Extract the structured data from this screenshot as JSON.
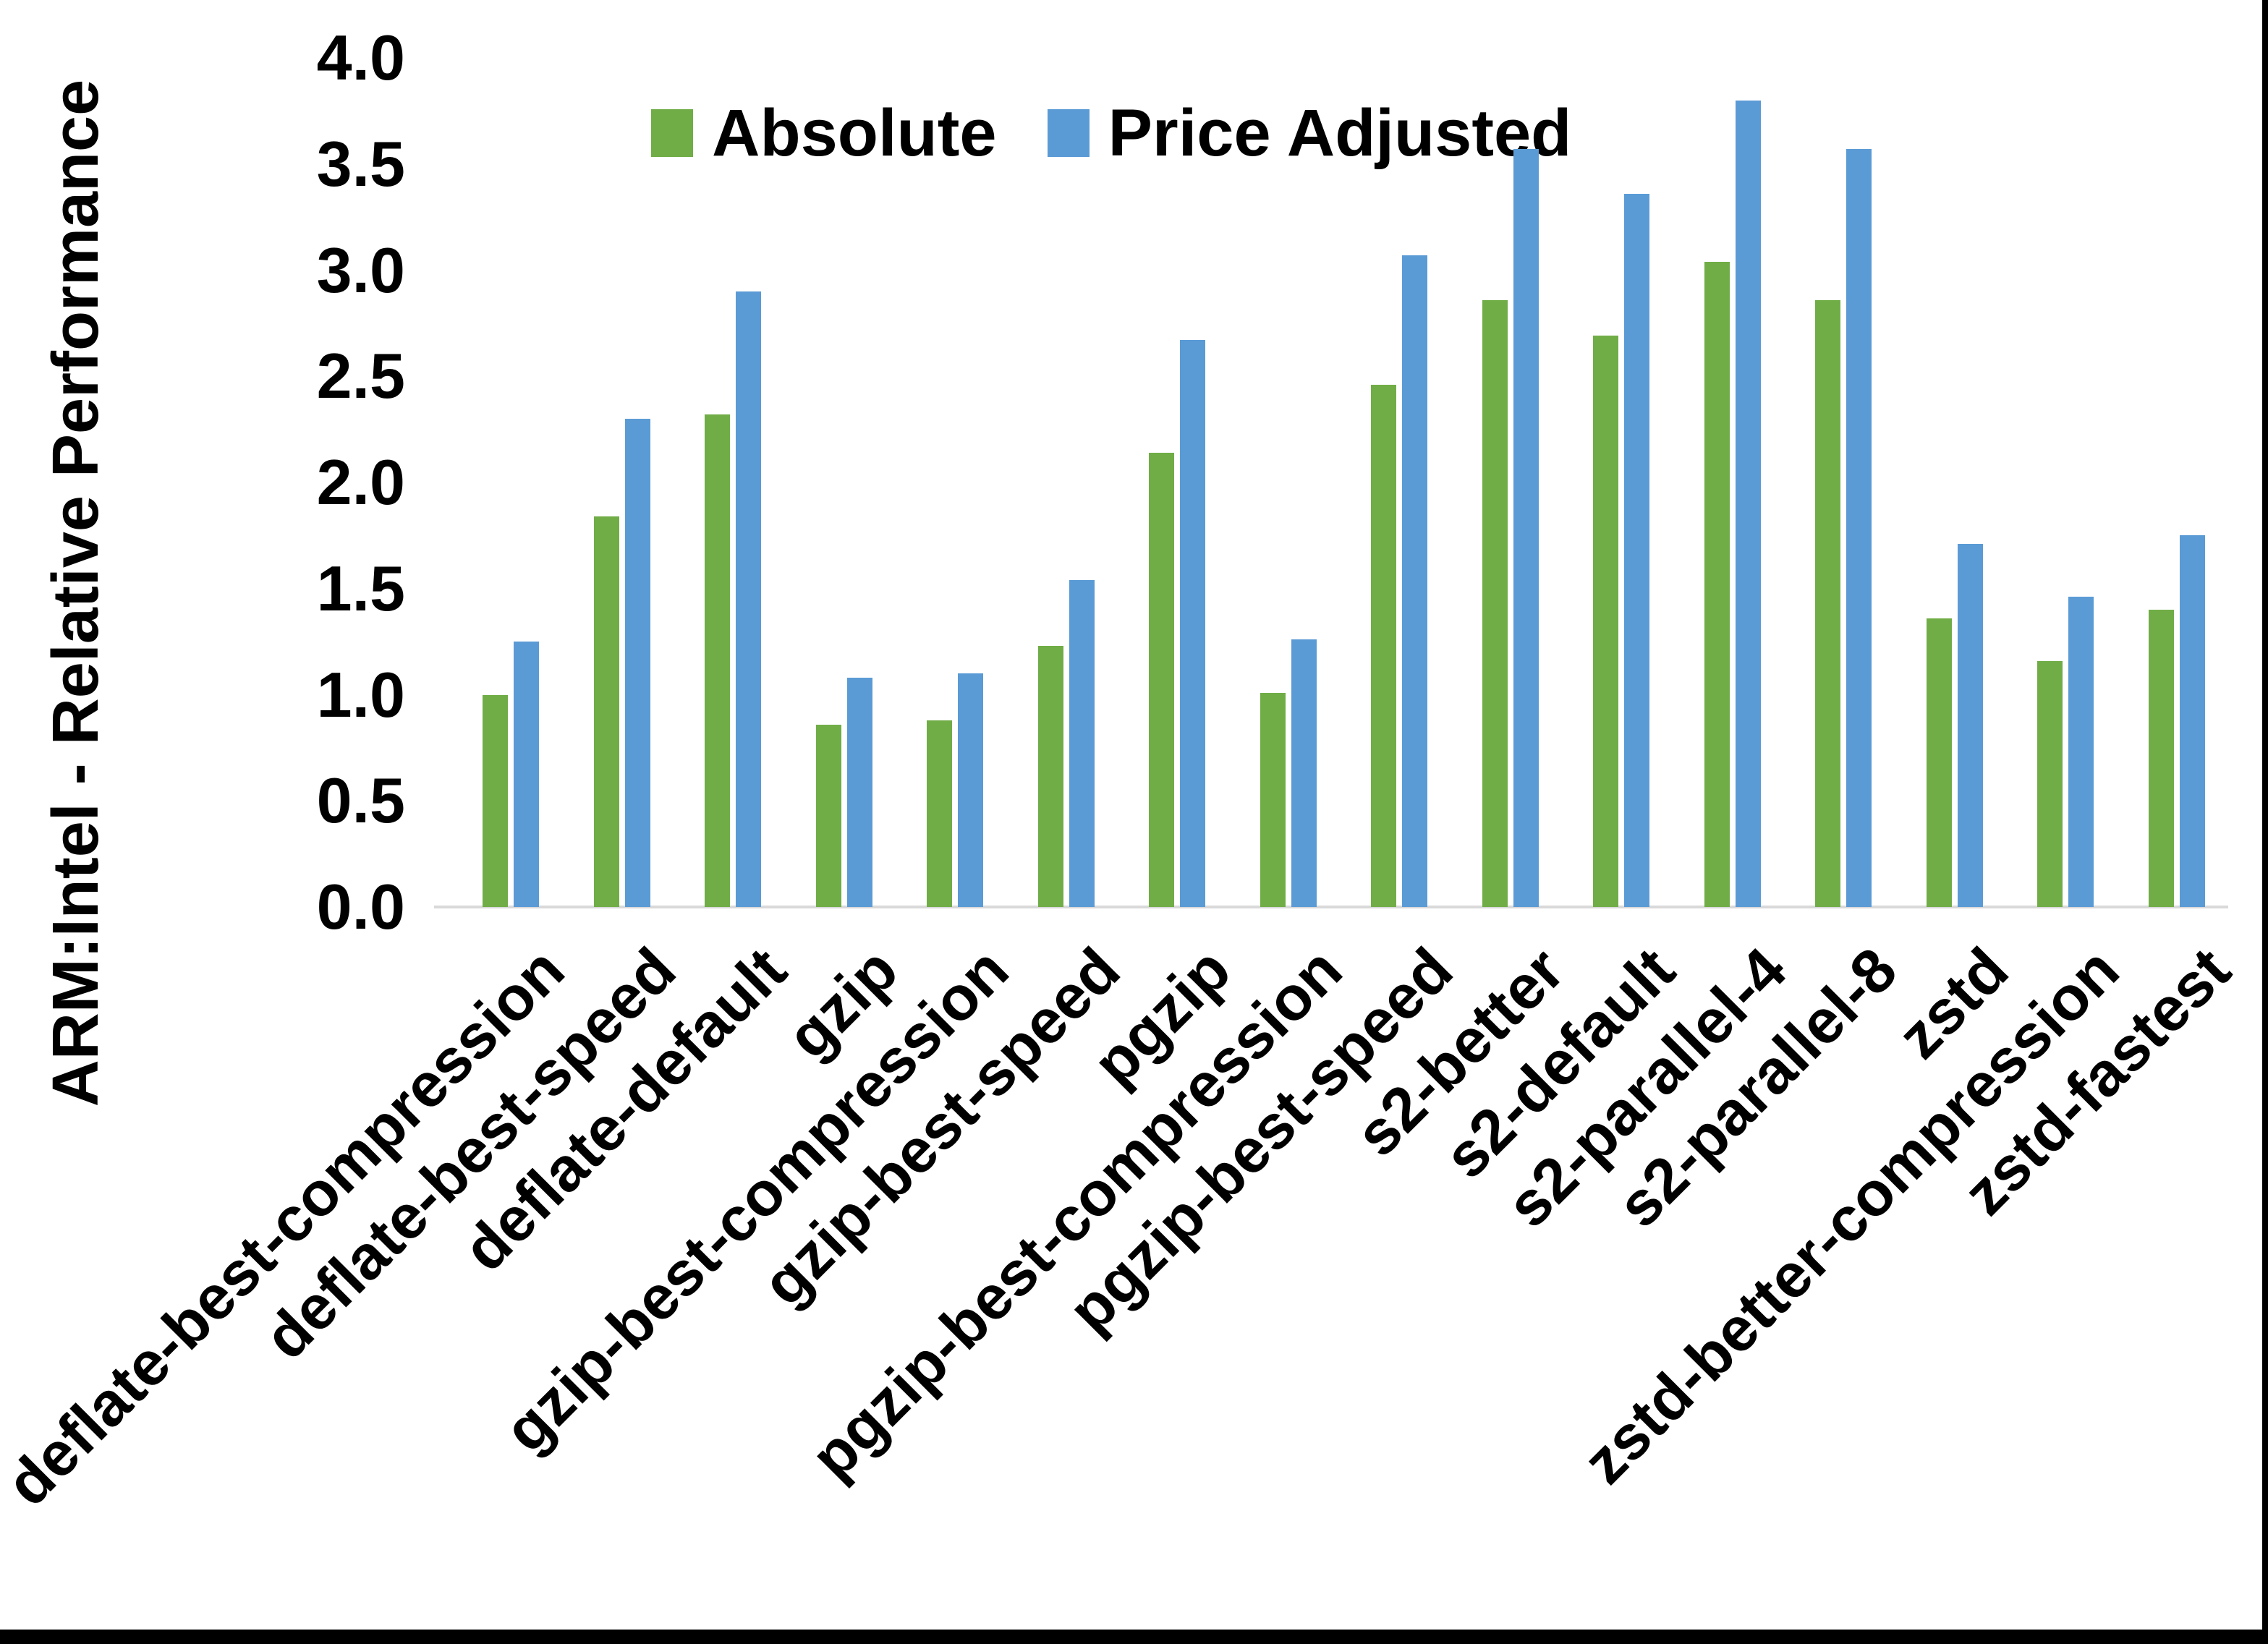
{
  "chart_data": {
    "type": "bar",
    "title": "",
    "xlabel": "",
    "ylabel": "ARM:Intel - Relative Performance",
    "ylim": [
      0,
      4
    ],
    "ytick_step": 0.5,
    "yticks": [
      "0.0",
      "0.5",
      "1.0",
      "1.5",
      "2.0",
      "2.5",
      "3.0",
      "3.5",
      "4.0"
    ],
    "grid": false,
    "legend_position": "top-center",
    "categories": [
      "deflate-best-compression",
      "deflate-best-speed",
      "deflate-default",
      "gzip",
      "gzip-best-compression",
      "gzip-best-speed",
      "pgzip",
      "pgzip-best-compression",
      "pgzip-best-speed",
      "s2-better",
      "s2-default",
      "s2-parallel-4",
      "s2-parallel-8",
      "zstd",
      "zstd-better-compression",
      "zstd-fastest"
    ],
    "series": [
      {
        "name": "Absolute",
        "color": "#70AD47",
        "values": [
          1.0,
          1.84,
          2.32,
          0.86,
          0.88,
          1.23,
          2.14,
          1.01,
          2.46,
          2.86,
          2.69,
          3.04,
          2.86,
          1.36,
          1.16,
          1.4
        ]
      },
      {
        "name": "Price Adjusted",
        "color": "#5B9BD5",
        "values": [
          1.25,
          2.3,
          2.9,
          1.08,
          1.1,
          1.54,
          2.67,
          1.26,
          3.07,
          3.57,
          3.36,
          3.8,
          3.57,
          1.71,
          1.46,
          1.75
        ]
      }
    ]
  }
}
